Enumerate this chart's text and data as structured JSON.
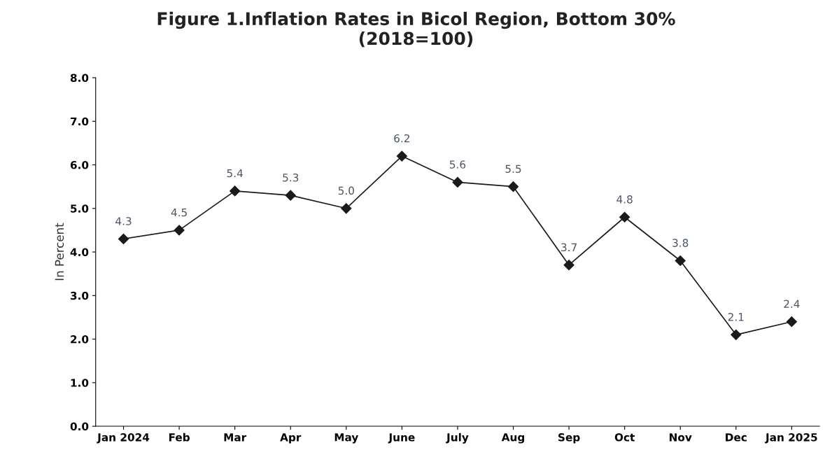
{
  "chart_data": {
    "type": "line",
    "title": "Figure 1.Inflation Rates in Bicol Region, Bottom 30%\n(2018=100)",
    "ylabel": "In Percent",
    "categories": [
      "Jan 2024",
      "Feb",
      "Mar",
      "Apr",
      "May",
      "June",
      "July",
      "Aug",
      "Sep",
      "Oct",
      "Nov",
      "Dec",
      "Jan 2025"
    ],
    "series": [
      {
        "color": "#1a1a1a",
        "values": [
          4.3,
          4.5,
          5.4,
          5.3,
          5.0,
          6.2,
          5.6,
          5.5,
          3.7,
          4.8,
          3.8,
          2.1,
          2.4
        ],
        "value_labels": [
          "4.3",
          "4.5",
          "5.4",
          "5.3",
          "5.0",
          "6.2",
          "5.6",
          "5.5",
          "3.7",
          "4.8",
          "3.8",
          "2.1",
          "2.4"
        ]
      }
    ],
    "ylim": [
      0,
      8
    ],
    "yticks": [
      {
        "value": 0,
        "label": "0.0"
      },
      {
        "value": 1,
        "label": "1.0"
      },
      {
        "value": 2,
        "label": "2.0"
      },
      {
        "value": 3,
        "label": "3.0"
      },
      {
        "value": 4,
        "label": "4.0"
      },
      {
        "value": 5,
        "label": "5.0"
      },
      {
        "value": 6,
        "label": "6.0"
      },
      {
        "value": 7,
        "label": "7.0"
      },
      {
        "value": 8,
        "label": "8.0"
      }
    ],
    "marker": "diamond",
    "line_style": "solid",
    "grid": false,
    "legend": false
  }
}
